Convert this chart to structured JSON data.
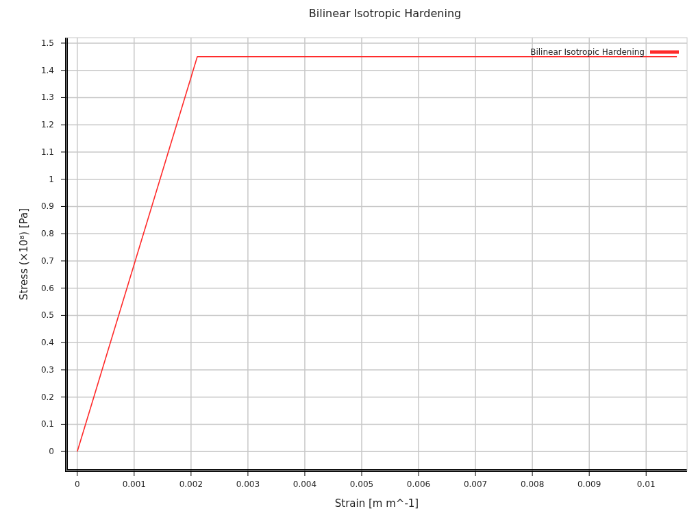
{
  "chart_data": {
    "type": "line",
    "title": "Bilinear Isotropic Hardening",
    "xlabel": "Strain  [m m^-1]",
    "ylabel": "Stress  (×10⁸)  [Pa]",
    "series": [
      {
        "name": "Bilinear Isotropic Hardening",
        "color": "#ff2a2a",
        "x": [
          0,
          0.00211,
          0.01054
        ],
        "values": [
          0,
          1.45,
          1.45
        ]
      }
    ],
    "xlim": [
      -0.00019,
      0.01072
    ],
    "xticks": [
      0,
      0.001,
      0.002,
      0.003,
      0.004,
      0.005,
      0.006,
      0.007,
      0.008,
      0.009,
      0.01
    ],
    "ylim": [
      -0.07,
      1.52
    ],
    "yticks": [
      0,
      0.1,
      0.2,
      0.3,
      0.4,
      0.5,
      0.6,
      0.7,
      0.8,
      0.9,
      1,
      1.1,
      1.2,
      1.3,
      1.4,
      1.5
    ],
    "grid": true,
    "legend": "top right",
    "marker": "none",
    "line_style": "solid"
  }
}
